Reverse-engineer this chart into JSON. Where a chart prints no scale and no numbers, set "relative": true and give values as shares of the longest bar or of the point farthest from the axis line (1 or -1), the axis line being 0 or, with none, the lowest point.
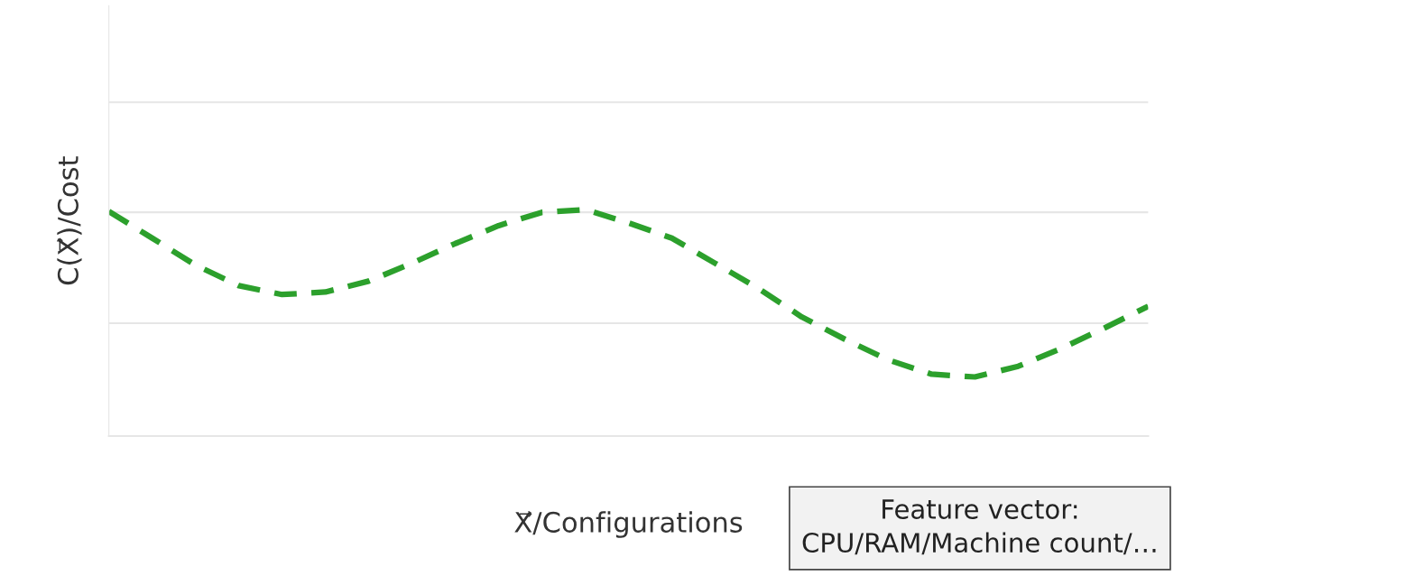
{
  "chart_data": {
    "type": "line",
    "relative": true,
    "xlabel": "X⃗/Configurations",
    "ylabel": "C(X⃗)/Cost",
    "annotations": [
      "Feature vector:\nCPU/RAM/Machine count/…"
    ],
    "categories": [
      null,
      null,
      null,
      null,
      null,
      null,
      null,
      null,
      null,
      null,
      null,
      null,
      null,
      null,
      null,
      null,
      null,
      null,
      null,
      null,
      null,
      null,
      null,
      null,
      null
    ],
    "series": [
      {
        "color": "#2ca02c",
        "values": [
          0.992,
          0.874,
          0.755,
          0.664,
          0.625,
          0.636,
          0.684,
          0.763,
          0.85,
          0.929,
          0.988,
          1.0,
          0.941,
          0.874,
          0.763,
          0.652,
          0.526,
          0.427,
          0.336,
          0.273,
          0.261,
          0.308,
          0.387,
          0.478,
          0.573
        ]
      }
    ],
    "ref_lines": [
      {
        "axis": "y",
        "value": 0.498,
        "color": "#e6e6e6",
        "line_style": "solid"
      },
      {
        "axis": "y",
        "value": 0.988,
        "color": "#e6e6e6",
        "line_style": "solid"
      },
      {
        "axis": "y",
        "value": 1.474,
        "color": "#e6e6e6",
        "line_style": "solid"
      }
    ],
    "line_style": "dashed",
    "marker": "none",
    "legend": false
  }
}
